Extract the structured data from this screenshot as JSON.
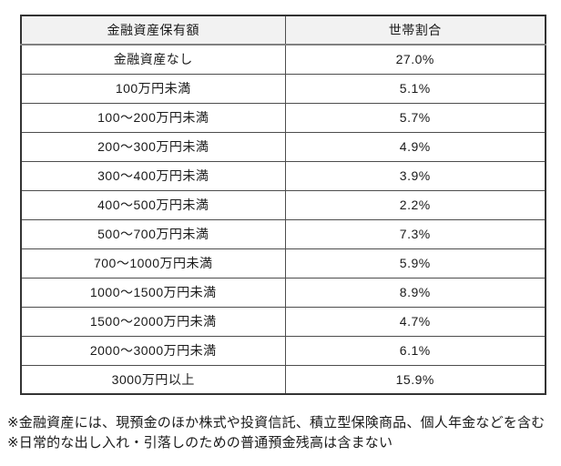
{
  "table": {
    "headers": {
      "asset": "金融資産保有額",
      "ratio": "世帯割合"
    },
    "rows": [
      {
        "label": "金融資産なし",
        "value": "27.0%"
      },
      {
        "label": "100万円未満",
        "value": "5.1%"
      },
      {
        "label": "100〜200万円未満",
        "value": "5.7%"
      },
      {
        "label": "200〜300万円未満",
        "value": "4.9%"
      },
      {
        "label": "300〜400万円未満",
        "value": "3.9%"
      },
      {
        "label": "400〜500万円未満",
        "value": "2.2%"
      },
      {
        "label": "500〜700万円未満",
        "value": "7.3%"
      },
      {
        "label": "700〜1000万円未満",
        "value": "5.9%"
      },
      {
        "label": "1000〜1500万円未満",
        "value": "8.9%"
      },
      {
        "label": "1500〜2000万円未満",
        "value": "4.7%"
      },
      {
        "label": "2000〜3000万円未満",
        "value": "6.1%"
      },
      {
        "label": "3000万円以上",
        "value": "15.9%"
      }
    ]
  },
  "notes": [
    "※金融資産には、現預金のほか株式や投資信託、積立型保険商品、個人年金などを含む",
    "※日常的な出し入れ・引落しのための普通預金残高は含まない"
  ],
  "colors": {
    "header_bg": "#f2f2f2",
    "border": "#4d4d4d",
    "text": "#1a1a1a"
  }
}
